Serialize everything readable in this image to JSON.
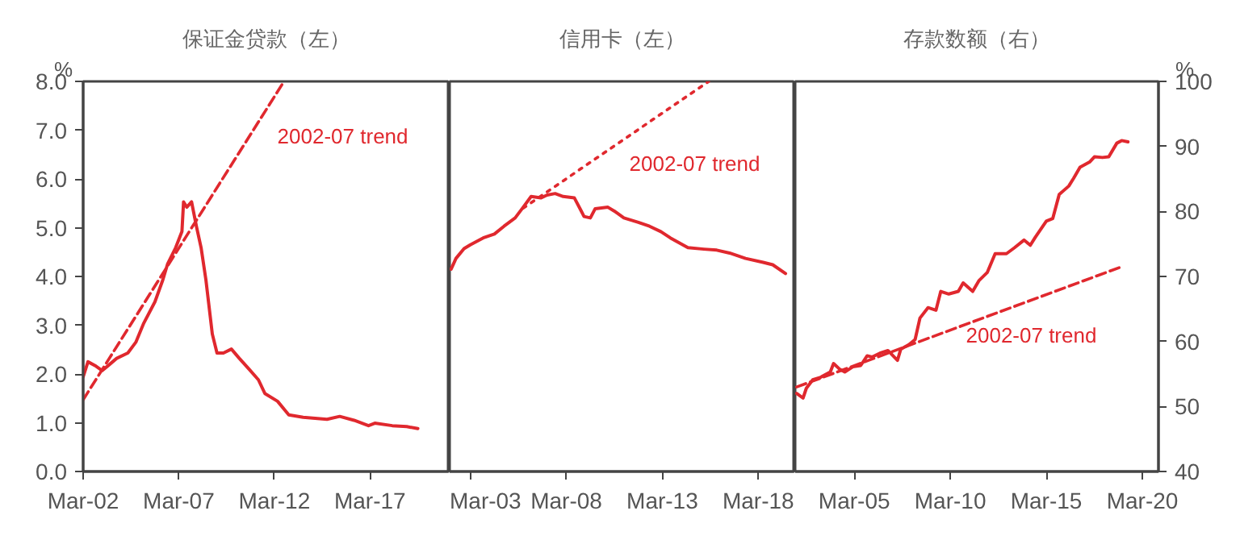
{
  "chart_data": [
    {
      "type": "line",
      "title": "保证金贷款（左）",
      "ylabel": "%",
      "xlim": [
        "2002-03",
        "2021-05"
      ],
      "xticks": [
        {
          "value": "2002-03",
          "label": "Mar-02"
        },
        {
          "value": "2007-03",
          "label": "Mar-07"
        },
        {
          "value": "2012-03",
          "label": "Mar-12"
        },
        {
          "value": "2017-03",
          "label": "Mar-17"
        }
      ],
      "ylim": [
        0,
        8
      ],
      "yticks": [
        {
          "value": 0,
          "label": "0.0"
        },
        {
          "value": 1,
          "label": "1.0"
        },
        {
          "value": 2,
          "label": "2.0"
        },
        {
          "value": 3,
          "label": "3.0"
        },
        {
          "value": 4,
          "label": "4.0"
        },
        {
          "value": 5,
          "label": "5.0"
        },
        {
          "value": 6,
          "label": "6.0"
        },
        {
          "value": 7,
          "label": "7.0"
        },
        {
          "value": 8,
          "label": "8.0"
        }
      ],
      "series": [
        {
          "color": "#e0282e",
          "x": [
            "2002-03",
            "2002-06",
            "2002-11",
            "2003-03",
            "2003-07",
            "2003-12",
            "2004-07",
            "2004-12",
            "2005-05",
            "2005-12",
            "2006-05",
            "2006-08",
            "2007-01",
            "2007-05",
            "2007-06",
            "2007-08",
            "2007-11",
            "2008-02",
            "2008-05",
            "2008-08",
            "2008-12",
            "2009-03",
            "2009-07",
            "2009-12",
            "2010-05",
            "2010-11",
            "2011-05",
            "2011-09",
            "2012-05",
            "2012-12",
            "2013-09",
            "2014-12",
            "2015-08",
            "2016-05",
            "2017-02",
            "2017-06",
            "2018-05",
            "2019-02",
            "2019-09"
          ],
          "values": [
            1.94,
            2.25,
            2.16,
            2.07,
            2.18,
            2.32,
            2.43,
            2.65,
            3.04,
            3.48,
            3.93,
            4.26,
            4.59,
            4.92,
            5.53,
            5.42,
            5.53,
            5.03,
            4.59,
            3.93,
            2.82,
            2.43,
            2.43,
            2.51,
            2.32,
            2.1,
            1.88,
            1.6,
            1.44,
            1.16,
            1.11,
            1.07,
            1.13,
            1.05,
            0.94,
            0.99,
            0.94,
            0.92,
            0.88
          ]
        },
        {
          "color": "#e0282e",
          "line_style": "dashed",
          "x": [
            "2002-03",
            "2012-09"
          ],
          "values": [
            1.47,
            8.0
          ]
        }
      ],
      "annotations": [
        "2002-07 trend"
      ]
    },
    {
      "type": "line",
      "title": "信用卡（左）",
      "xlim": [
        "2002-02",
        "2020-02"
      ],
      "xticks": [
        {
          "value": "2003-03",
          "label": "Mar-03"
        },
        {
          "value": "2008-03",
          "label": "Mar-08"
        },
        {
          "value": "2013-03",
          "label": "Mar-13"
        },
        {
          "value": "2018-03",
          "label": "Mar-18"
        }
      ],
      "ylim": [
        0,
        8
      ],
      "tick_labels": "x",
      "series": [
        {
          "color": "#e0282e",
          "x": [
            "2002-03",
            "2002-06",
            "2002-11",
            "2003-03",
            "2003-11",
            "2004-06",
            "2004-12",
            "2005-07",
            "2005-12",
            "2006-05",
            "2006-11",
            "2007-03",
            "2007-08",
            "2008-01",
            "2008-08",
            "2008-12",
            "2009-02",
            "2009-06",
            "2009-09",
            "2010-05",
            "2010-09",
            "2011-03",
            "2011-12",
            "2012-07",
            "2013-02",
            "2013-08",
            "2014-07",
            "2015-05",
            "2016-01",
            "2016-09",
            "2017-07",
            "2018-06",
            "2018-12",
            "2019-08"
          ],
          "values": [
            4.15,
            4.37,
            4.57,
            4.65,
            4.79,
            4.87,
            5.03,
            5.2,
            5.42,
            5.64,
            5.61,
            5.67,
            5.7,
            5.64,
            5.61,
            5.36,
            5.23,
            5.2,
            5.39,
            5.42,
            5.34,
            5.2,
            5.11,
            5.03,
            4.92,
            4.79,
            4.59,
            4.56,
            4.54,
            4.48,
            4.37,
            4.29,
            4.24,
            4.06
          ]
        },
        {
          "color": "#e0282e",
          "line_style": "dotted",
          "x": [
            "2005-12",
            "2015-08"
          ],
          "values": [
            5.4,
            8.0
          ]
        }
      ],
      "annotations": [
        "2002-07 trend"
      ]
    },
    {
      "type": "line",
      "title": "存款数额（右）",
      "y2label": "%",
      "xlim": [
        "2002-02",
        "2021-01"
      ],
      "xticks": [
        {
          "value": "2005-03",
          "label": "Mar-05"
        },
        {
          "value": "2010-03",
          "label": "Mar-10"
        },
        {
          "value": "2015-03",
          "label": "Mar-15"
        },
        {
          "value": "2020-03",
          "label": "Mar-20"
        }
      ],
      "y2lim": [
        40,
        100
      ],
      "y2ticks": [
        40,
        50,
        60,
        70,
        80,
        90,
        100
      ],
      "series": [
        {
          "color": "#e0282e",
          "axis": "y2",
          "x": [
            "2002-03",
            "2002-07",
            "2002-09",
            "2003-01",
            "2003-06",
            "2003-12",
            "2004-02",
            "2004-06",
            "2004-09",
            "2005-02",
            "2005-07",
            "2005-11",
            "2006-02",
            "2006-07",
            "2006-12",
            "2007-06",
            "2007-08",
            "2008-01",
            "2008-05",
            "2008-08",
            "2009-01",
            "2009-06",
            "2009-09",
            "2010-02",
            "2010-08",
            "2010-11",
            "2011-05",
            "2011-09",
            "2012-02",
            "2012-07",
            "2013-02",
            "2013-07",
            "2014-01",
            "2014-05",
            "2014-08",
            "2015-03",
            "2015-07",
            "2015-11",
            "2016-05",
            "2016-08",
            "2016-12",
            "2017-06",
            "2017-09",
            "2018-02",
            "2018-06",
            "2018-11",
            "2019-02",
            "2019-06"
          ],
          "values": [
            52.0,
            51.3,
            52.8,
            54.1,
            54.5,
            55.3,
            56.6,
            55.7,
            55.3,
            56.1,
            56.3,
            57.8,
            57.6,
            58.2,
            58.6,
            57.1,
            58.8,
            59.5,
            60.3,
            63.6,
            65.2,
            64.8,
            67.7,
            67.3,
            67.7,
            69.0,
            67.7,
            69.4,
            70.6,
            73.5,
            73.5,
            74.4,
            75.6,
            74.8,
            76.0,
            78.5,
            78.9,
            82.6,
            83.9,
            85.1,
            86.8,
            87.6,
            88.4,
            88.3,
            88.4,
            90.5,
            90.9,
            90.7
          ]
        },
        {
          "color": "#e0282e",
          "axis": "y2",
          "line_style": "dashed",
          "x": [
            "2002-03",
            "2019-02"
          ],
          "values": [
            53.0,
            71.5
          ]
        }
      ],
      "annotations": [
        "2002-07 trend"
      ]
    }
  ]
}
